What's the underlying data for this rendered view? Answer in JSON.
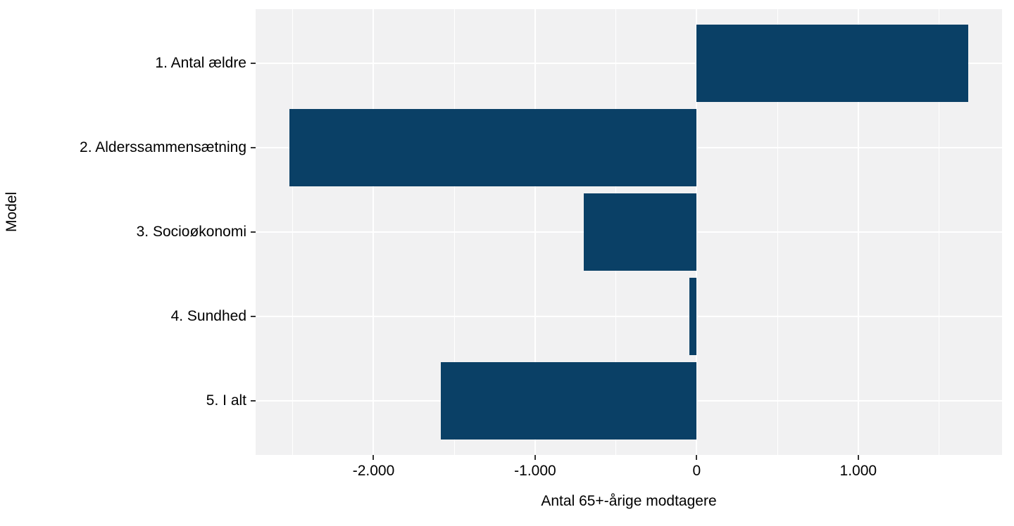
{
  "chart_data": {
    "type": "bar",
    "orientation": "horizontal",
    "title": "",
    "xlabel": "Antal 65+-årige modtagere",
    "ylabel": "Model",
    "categories": [
      "1. Antal ældre",
      "2. Alderssammensætning",
      "3. Socioøkonomi",
      "4. Sundhed",
      "5. I alt"
    ],
    "values": [
      1680,
      -2520,
      -700,
      -45,
      -1585
    ],
    "x_ticks": [
      {
        "value": -2000,
        "label": "-2.000"
      },
      {
        "value": -1000,
        "label": "-1.000"
      },
      {
        "value": 0,
        "label": "0"
      },
      {
        "value": 1000,
        "label": "1.000"
      }
    ],
    "x_minor_ticks": [
      -2500,
      -1500,
      -500,
      500,
      1500
    ],
    "xlim": [
      -2730,
      1890
    ],
    "bar_color": "#0a4066",
    "panel_background": "#f1f1f2",
    "grid_color": "#ffffff",
    "grid": "on",
    "legend": "none",
    "bar_width_fraction": 0.9
  }
}
